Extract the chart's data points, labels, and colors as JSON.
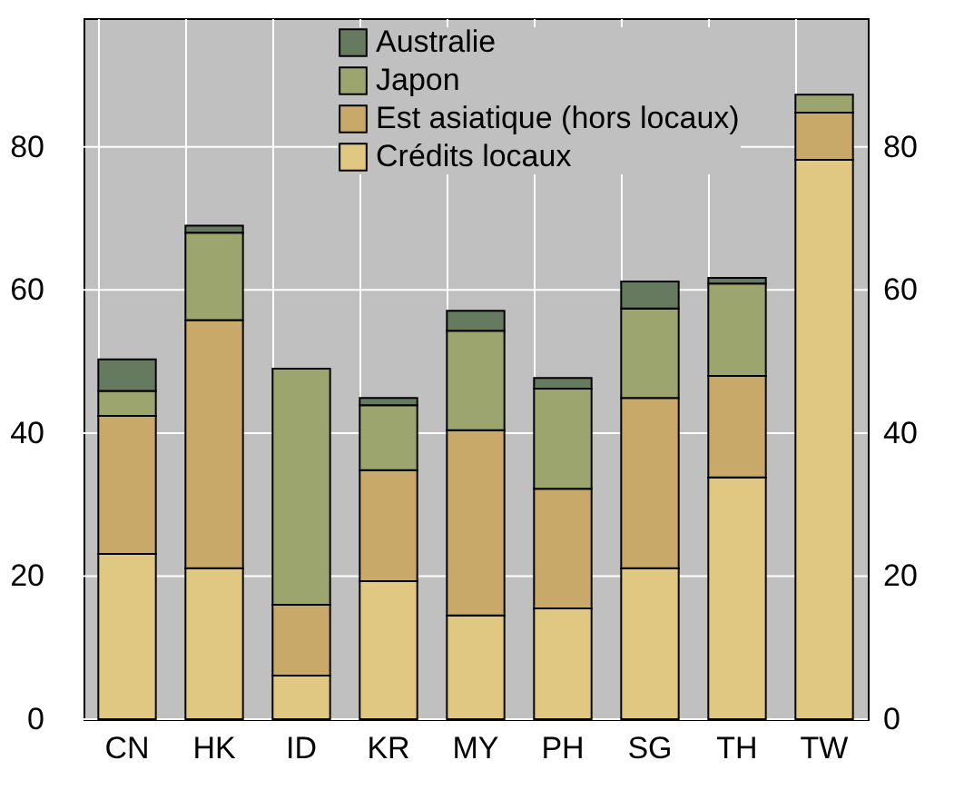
{
  "chart_data": {
    "type": "bar",
    "stacked": true,
    "categories": [
      "CN",
      "HK",
      "ID",
      "KR",
      "MY",
      "PH",
      "SG",
      "TH",
      "TW"
    ],
    "series": [
      {
        "name": "Crédits locaux",
        "color": "#e0c882",
        "values": [
          23.1,
          21.1,
          6.1,
          19.3,
          14.5,
          15.5,
          21.1,
          33.8,
          78.2
        ]
      },
      {
        "name": "Est asiatique (hors locaux)",
        "color": "#c8a96a",
        "values": [
          19.3,
          34.7,
          9.9,
          15.5,
          25.9,
          16.7,
          23.8,
          14.2,
          6.6
        ]
      },
      {
        "name": "Japon",
        "color": "#9ca56e",
        "values": [
          3.5,
          12.2,
          33.0,
          9.1,
          13.9,
          14.0,
          12.5,
          12.9,
          2.5
        ]
      },
      {
        "name": "Australie",
        "color": "#667a5f",
        "values": [
          4.4,
          1.0,
          null,
          1.0,
          2.8,
          1.5,
          3.8,
          0.8,
          null
        ]
      }
    ],
    "ylim": [
      0,
      98
    ],
    "yticks": [
      0,
      20,
      40,
      60,
      80
    ],
    "y2lim": [
      0,
      98
    ],
    "y2ticks": [
      0,
      20,
      40,
      60,
      80
    ],
    "grid": true,
    "legend": "top"
  }
}
